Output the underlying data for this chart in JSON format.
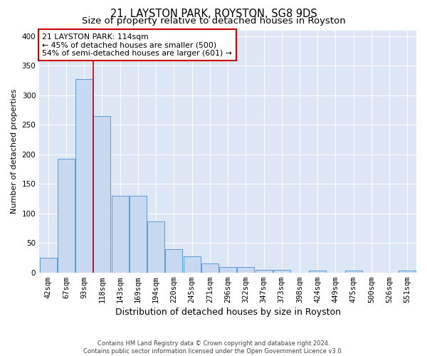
{
  "title1": "21, LAYSTON PARK, ROYSTON, SG8 9DS",
  "title2": "Size of property relative to detached houses in Royston",
  "xlabel": "Distribution of detached houses by size in Royston",
  "ylabel": "Number of detached properties",
  "bar_labels": [
    "42sqm",
    "67sqm",
    "93sqm",
    "118sqm",
    "143sqm",
    "169sqm",
    "194sqm",
    "220sqm",
    "245sqm",
    "271sqm",
    "296sqm",
    "322sqm",
    "347sqm",
    "373sqm",
    "398sqm",
    "424sqm",
    "449sqm",
    "475sqm",
    "500sqm",
    "526sqm",
    "551sqm"
  ],
  "bar_values": [
    25,
    192,
    327,
    265,
    130,
    130,
    87,
    40,
    27,
    15,
    9,
    9,
    5,
    5,
    0,
    3,
    0,
    3,
    0,
    0,
    3
  ],
  "bar_color": "#c6d9f0",
  "bar_edge_color": "#5b9bd5",
  "red_line_x": 2.5,
  "annotation_text": "21 LAYSTON PARK: 114sqm\n← 45% of detached houses are smaller (500)\n54% of semi-detached houses are larger (601) →",
  "annotation_box_color": "#ffffff",
  "annotation_box_edge": "#cc0000",
  "red_line_color": "#cc0000",
  "footer1": "Contains HM Land Registry data © Crown copyright and database right 2024.",
  "footer2": "Contains public sector information licensed under the Open Government Licence v3.0.",
  "ylim": [
    0,
    410
  ],
  "yticks": [
    0,
    50,
    100,
    150,
    200,
    250,
    300,
    350,
    400
  ],
  "bg_color": "#dce6f5",
  "title_fontsize": 10.5,
  "subtitle_fontsize": 9.5,
  "ylabel_fontsize": 8,
  "xlabel_fontsize": 9,
  "tick_fontsize": 7.5
}
